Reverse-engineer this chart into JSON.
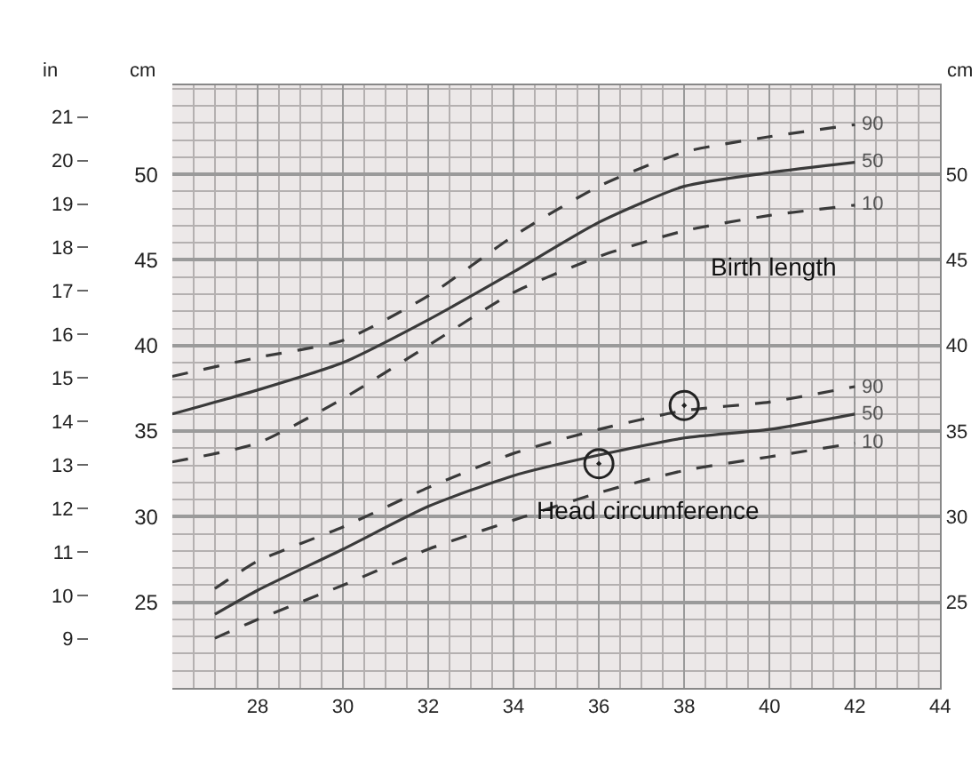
{
  "chart_data": {
    "type": "line",
    "x": [
      26,
      28,
      30,
      32,
      34,
      36,
      38,
      40,
      42
    ],
    "xlim": [
      26,
      44
    ],
    "xticks": [
      28,
      30,
      32,
      34,
      36,
      38,
      40,
      42,
      44
    ],
    "ylim": [
      20,
      55.2
    ],
    "yticks": [
      25,
      30,
      35,
      40,
      45,
      50
    ],
    "ylabel": "cm",
    "y2lim": [
      7.87,
      21.73
    ],
    "y2ticks": [
      9,
      10,
      11,
      12,
      13,
      14,
      15,
      16,
      17,
      18,
      19,
      20,
      21
    ],
    "y2label": "in",
    "y3lim": [
      20,
      55.2
    ],
    "y3ticks": [
      25,
      30,
      35,
      40,
      45,
      50
    ],
    "y3label": "cm",
    "grid": true,
    "series": [
      {
        "name": "90",
        "color": "#3a3a3a",
        "line_style": "dashed",
        "values": [
          38.2,
          39.3,
          40.3,
          42.9,
          46.4,
          49.3,
          51.3,
          52.2,
          52.9
        ]
      },
      {
        "name": "50",
        "color": "#3a3a3a",
        "line_style": "solid",
        "values": [
          36.0,
          37.4,
          39.0,
          41.5,
          44.3,
          47.2,
          49.3,
          50.1,
          50.7
        ]
      },
      {
        "name": "10",
        "color": "#3a3a3a",
        "line_style": "dashed",
        "values": [
          33.2,
          34.3,
          36.9,
          40.0,
          43.1,
          45.2,
          46.7,
          47.6,
          48.2
        ]
      },
      {
        "name": "90",
        "color": "#3a3a3a",
        "line_style": "dashed",
        "x": [
          27,
          28,
          30,
          32,
          34,
          36,
          38,
          40,
          42
        ],
        "values": [
          25.8,
          27.4,
          29.4,
          31.7,
          33.7,
          35.1,
          36.2,
          36.7,
          37.6
        ]
      },
      {
        "name": "50",
        "color": "#3a3a3a",
        "line_style": "solid",
        "x": [
          27,
          28,
          30,
          32,
          34,
          36,
          38,
          40,
          42
        ],
        "values": [
          24.3,
          25.7,
          28.1,
          30.6,
          32.4,
          33.6,
          34.6,
          35.1,
          36.0
        ]
      },
      {
        "name": "10",
        "color": "#3a3a3a",
        "line_style": "dashed",
        "x": [
          27,
          28,
          30,
          32,
          34,
          36,
          38,
          40,
          42
        ],
        "values": [
          22.9,
          24.0,
          26.0,
          28.1,
          29.8,
          31.4,
          32.7,
          33.5,
          34.3
        ]
      },
      {
        "type": "scatter",
        "color": "#222222",
        "marker": "circle",
        "x": [
          36,
          38
        ],
        "values": [
          33.1,
          36.5
        ]
      }
    ],
    "annotations": [
      "Birth length",
      "Head circumference"
    ]
  }
}
